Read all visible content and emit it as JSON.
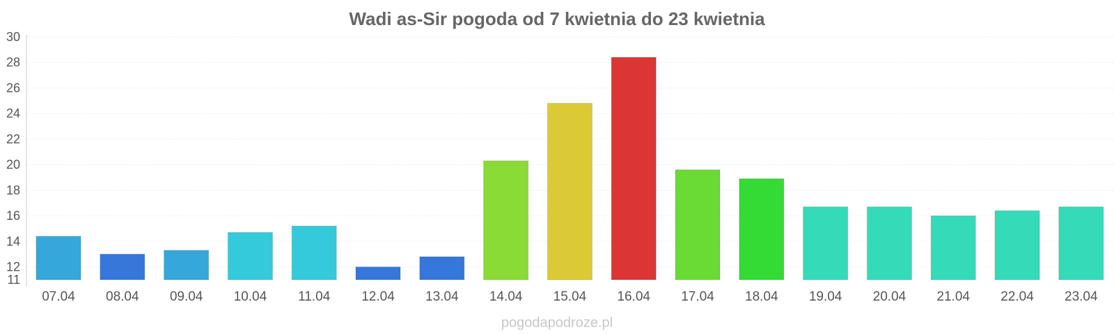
{
  "chart_data": {
    "type": "bar",
    "title": "Wadi as-Sir pogoda od 7 kwietnia do 23 kwietnia",
    "xlabel": "",
    "ylabel": "",
    "ylim": [
      11,
      30
    ],
    "yticks": [
      11,
      12,
      14,
      16,
      18,
      20,
      22,
      24,
      26,
      28,
      30
    ],
    "grid": true,
    "categories": [
      "07.04",
      "08.04",
      "09.04",
      "10.04",
      "11.04",
      "12.04",
      "13.04",
      "14.04",
      "15.04",
      "16.04",
      "17.04",
      "18.04",
      "19.04",
      "20.04",
      "21.04",
      "22.04",
      "23.04"
    ],
    "values": [
      14.4,
      13.0,
      13.3,
      14.7,
      15.2,
      12.0,
      12.8,
      20.3,
      24.8,
      28.4,
      19.6,
      18.9,
      16.7,
      16.7,
      16.0,
      16.4,
      16.7
    ],
    "colors": [
      "#35a7db",
      "#3577db",
      "#35a7db",
      "#35cadb",
      "#35cadb",
      "#3577db",
      "#3577db",
      "#8adb35",
      "#dbca35",
      "#db3535",
      "#6adb35",
      "#35db35",
      "#35dbb8",
      "#35dbb8",
      "#35dbb8",
      "#35dbb8",
      "#35dbb8"
    ]
  },
  "footer": {
    "credit": "pogodapodroze.pl"
  }
}
